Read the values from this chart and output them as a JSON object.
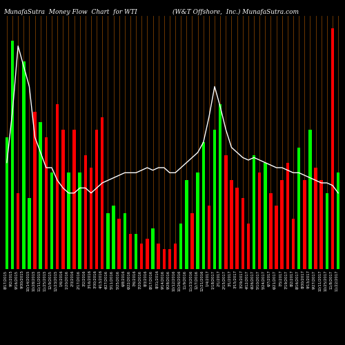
{
  "title_left": "MunafaSutra  Money Flow  Chart  for WTI",
  "title_right": "(W&T Offshore,  Inc.) MunafaSutra.com",
  "background_color": "#000000",
  "bar_colors": [
    "green",
    "green",
    "red",
    "green",
    "green",
    "red",
    "green",
    "red",
    "green",
    "red",
    "red",
    "green",
    "red",
    "green",
    "red",
    "red",
    "red",
    "red",
    "green",
    "green",
    "red",
    "green",
    "red",
    "green",
    "red",
    "red",
    "green",
    "red",
    "red",
    "red",
    "red",
    "green",
    "green",
    "red",
    "green",
    "green",
    "red",
    "green",
    "green",
    "red",
    "red",
    "red",
    "red",
    "red",
    "green",
    "red",
    "green",
    "red",
    "red",
    "red",
    "red",
    "red",
    "green",
    "red",
    "green",
    "red",
    "red",
    "green",
    "red",
    "green"
  ],
  "bar_heights": [
    0.52,
    0.9,
    0.3,
    0.82,
    0.28,
    0.62,
    0.58,
    0.52,
    0.38,
    0.65,
    0.55,
    0.38,
    0.55,
    0.38,
    0.45,
    0.4,
    0.55,
    0.6,
    0.22,
    0.25,
    0.2,
    0.22,
    0.14,
    0.14,
    0.1,
    0.12,
    0.16,
    0.1,
    0.08,
    0.08,
    0.1,
    0.18,
    0.35,
    0.22,
    0.38,
    0.5,
    0.25,
    0.55,
    0.65,
    0.45,
    0.35,
    0.32,
    0.28,
    0.18,
    0.45,
    0.38,
    0.42,
    0.3,
    0.25,
    0.35,
    0.42,
    0.2,
    0.48,
    0.35,
    0.55,
    0.4,
    0.35,
    0.3,
    0.95,
    0.38
  ],
  "line_values": [
    0.42,
    0.62,
    0.88,
    0.8,
    0.72,
    0.52,
    0.46,
    0.4,
    0.4,
    0.35,
    0.32,
    0.3,
    0.3,
    0.32,
    0.32,
    0.3,
    0.32,
    0.34,
    0.35,
    0.36,
    0.37,
    0.38,
    0.38,
    0.38,
    0.39,
    0.4,
    0.39,
    0.4,
    0.4,
    0.38,
    0.38,
    0.4,
    0.42,
    0.44,
    0.46,
    0.5,
    0.6,
    0.72,
    0.64,
    0.55,
    0.48,
    0.46,
    0.44,
    0.43,
    0.44,
    0.43,
    0.42,
    0.41,
    0.4,
    0.4,
    0.39,
    0.38,
    0.38,
    0.37,
    0.36,
    0.35,
    0.34,
    0.34,
    0.33,
    0.3
  ],
  "labels": [
    "8/17/2015",
    "9/2/2015",
    "9/16/2015",
    "9/30/2015",
    "10/14/2015",
    "10/28/2015",
    "11/11/2015",
    "11/25/2015",
    "12/9/2015",
    "12/23/2015",
    "1/6/2016",
    "1/20/2016",
    "2/3/2016",
    "2/17/2016",
    "3/2/2016",
    "3/16/2016",
    "3/30/2016",
    "4/13/2016",
    "4/27/2016",
    "5/11/2016",
    "5/25/2016",
    "6/8/2016",
    "6/22/2016",
    "7/6/2016",
    "7/20/2016",
    "8/3/2016",
    "8/17/2016",
    "8/31/2016",
    "9/14/2016",
    "9/28/2016",
    "10/12/2016",
    "10/26/2016",
    "11/9/2016",
    "11/23/2016",
    "12/7/2016",
    "12/21/2016",
    "1/4/2017",
    "1/18/2017",
    "2/1/2017",
    "2/15/2017",
    "3/1/2017",
    "3/15/2017",
    "3/29/2017",
    "4/12/2017",
    "4/26/2017",
    "5/10/2017",
    "5/24/2017",
    "6/7/2017",
    "6/21/2017",
    "7/5/2017",
    "7/19/2017",
    "8/2/2017",
    "8/16/2017",
    "8/30/2017",
    "9/13/2017",
    "9/27/2017",
    "10/11/2017",
    "10/25/2017",
    "11/8/2017",
    "11/22/2017"
  ],
  "ylim": [
    0,
    1.0
  ],
  "line_color": "#ffffff",
  "separator_color": "#8B4500",
  "title_fontsize": 6.5,
  "label_fontsize": 3.8,
  "figsize": [
    5.0,
    5.0
  ],
  "dpi": 100,
  "bar_width": 0.55,
  "green_color": "#00ff00",
  "red_color": "#ff0000"
}
